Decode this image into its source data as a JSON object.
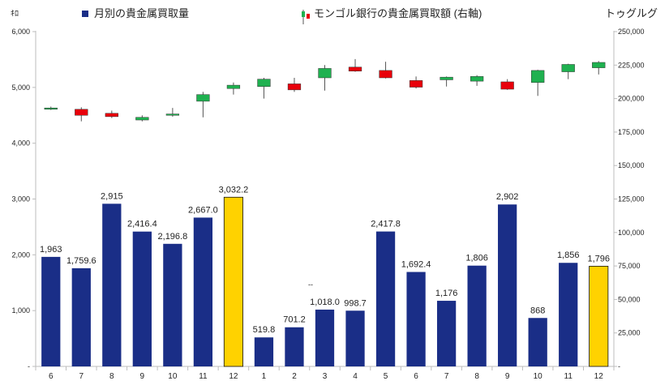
{
  "chart_data": {
    "type": "bar+candlestick",
    "left_unit": "ｷﾛ",
    "right_unit": "トゥグルグ",
    "legend": {
      "bar_label": "月別の貴金属買取量",
      "candle_label": "モンゴル銀行の貴金属買取額 (右軸)",
      "bar_color": "#1a2e87",
      "highlight_color": "#ffd200",
      "candle_up_color": "#1fb150",
      "candle_down_color": "#e8000b"
    },
    "left_axis": {
      "min": 0,
      "max": 6000,
      "ticks": [
        {
          "value": 0,
          "label": "-"
        },
        {
          "value": 1000,
          "label": "1,000"
        },
        {
          "value": 2000,
          "label": "2,000"
        },
        {
          "value": 3000,
          "label": "3,000"
        },
        {
          "value": 4000,
          "label": "4,000"
        },
        {
          "value": 5000,
          "label": "5,000"
        },
        {
          "value": 6000,
          "label": "6,000"
        }
      ]
    },
    "right_axis": {
      "min": 0,
      "max": 250000,
      "ticks": [
        {
          "value": 0,
          "label": "-"
        },
        {
          "value": 25000,
          "label": "25,000"
        },
        {
          "value": 50000,
          "label": "50,000"
        },
        {
          "value": 75000,
          "label": "75,000"
        },
        {
          "value": 100000,
          "label": "100,000"
        },
        {
          "value": 125000,
          "label": "125,000"
        },
        {
          "value": 150000,
          "label": "150,000"
        },
        {
          "value": 175000,
          "label": "175,000"
        },
        {
          "value": 200000,
          "label": "200,000"
        },
        {
          "value": 225000,
          "label": "225,000"
        },
        {
          "value": 250000,
          "label": "250,000"
        }
      ]
    },
    "categories": [
      "6",
      "7",
      "8",
      "9",
      "10",
      "11",
      "12",
      "1",
      "2",
      "3",
      "4",
      "5",
      "6",
      "7",
      "8",
      "9",
      "10",
      "11",
      "12"
    ],
    "bars": [
      {
        "value": 1963,
        "label": "1,963",
        "highlight": false
      },
      {
        "value": 1759.6,
        "label": "1,759.6",
        "highlight": false
      },
      {
        "value": 2915,
        "label": "2,915",
        "highlight": false
      },
      {
        "value": 2416.4,
        "label": "2,416.4",
        "highlight": false
      },
      {
        "value": 2196.8,
        "label": "2,196.8",
        "highlight": false
      },
      {
        "value": 2667.0,
        "label": "2,667.0",
        "highlight": false
      },
      {
        "value": 3032.2,
        "label": "3,032.2",
        "highlight": true
      },
      {
        "value": 519.8,
        "label": "519.8",
        "highlight": false
      },
      {
        "value": 701.2,
        "label": "701.2",
        "highlight": false
      },
      {
        "value": 1018.0,
        "label": "1,018.0",
        "highlight": false
      },
      {
        "value": 998.7,
        "label": "998.7",
        "highlight": false
      },
      {
        "value": 2417.8,
        "label": "2,417.8",
        "highlight": false
      },
      {
        "value": 1692.4,
        "label": "1,692.4",
        "highlight": false
      },
      {
        "value": 1176,
        "label": "1,176",
        "highlight": false
      },
      {
        "value": 1806,
        "label": "1,806",
        "highlight": false
      },
      {
        "value": 2902,
        "label": "2,902",
        "highlight": false
      },
      {
        "value": 868,
        "label": "868",
        "highlight": false
      },
      {
        "value": 1856,
        "label": "1,856",
        "highlight": false
      },
      {
        "value": 1796,
        "label": "1,796",
        "highlight": true
      }
    ],
    "candles": [
      {
        "open": 192000,
        "close": 193000,
        "high": 194000,
        "low": 191500
      },
      {
        "open": 192000,
        "close": 187500,
        "high": 193500,
        "low": 183000
      },
      {
        "open": 189000,
        "close": 186500,
        "high": 191000,
        "low": 185500
      },
      {
        "open": 184000,
        "close": 186000,
        "high": 187500,
        "low": 183000
      },
      {
        "open": 187500,
        "close": 188500,
        "high": 193000,
        "low": 186500
      },
      {
        "open": 198000,
        "close": 203000,
        "high": 205000,
        "low": 186000
      },
      {
        "open": 207500,
        "close": 210000,
        "high": 212000,
        "low": 203000
      },
      {
        "open": 209000,
        "close": 214500,
        "high": 215500,
        "low": 200000
      },
      {
        "open": 211000,
        "close": 206500,
        "high": 215500,
        "low": 205000
      },
      {
        "open": 215500,
        "close": 222500,
        "high": 225000,
        "low": 206000
      },
      {
        "open": 223500,
        "close": 220500,
        "high": 229500,
        "low": 220000
      },
      {
        "open": 221000,
        "close": 215500,
        "high": 227500,
        "low": 215000
      },
      {
        "open": 213500,
        "close": 208500,
        "high": 216500,
        "low": 207500
      },
      {
        "open": 214000,
        "close": 216000,
        "high": 216500,
        "low": 209000
      },
      {
        "open": 213000,
        "close": 216500,
        "high": 217500,
        "low": 209500
      },
      {
        "open": 212500,
        "close": 207000,
        "high": 214500,
        "low": 206500
      },
      {
        "open": 212000,
        "close": 221000,
        "high": 221500,
        "low": 202000
      },
      {
        "open": 220000,
        "close": 225500,
        "high": 226000,
        "low": 214500
      },
      {
        "open": 223000,
        "close": 227000,
        "high": 228000,
        "low": 218000
      }
    ],
    "stray_mark": "--"
  }
}
